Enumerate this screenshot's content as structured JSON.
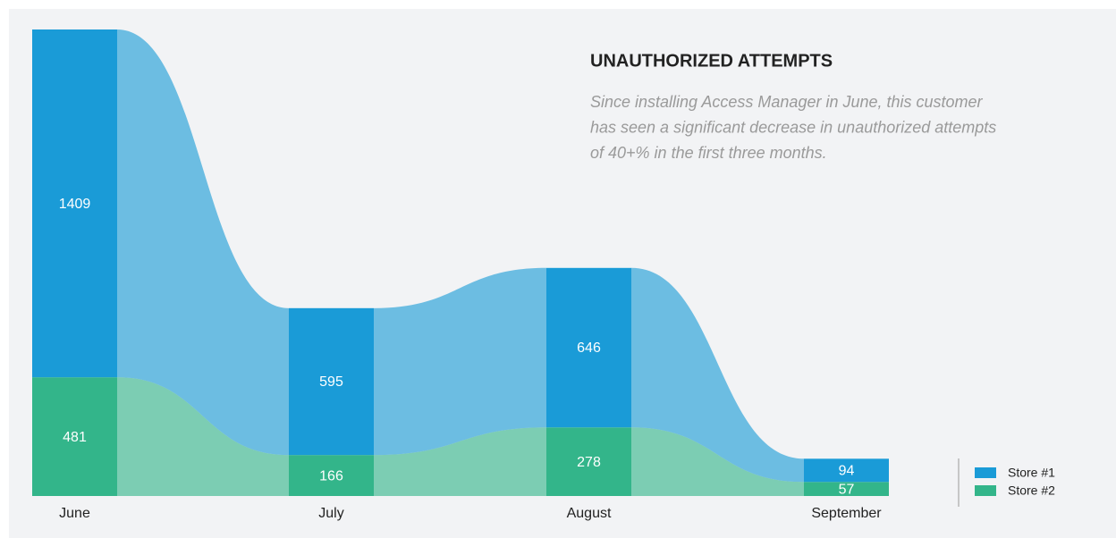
{
  "chart_data": {
    "type": "bar",
    "title": "UNAUTHORIZED ATTEMPTS",
    "subtitle": [
      "Since installing Access Manager in June, this customer",
      "has seen a significant decrease in unauthorized attempts",
      "of 40+% in the first three months."
    ],
    "categories": [
      "June",
      "July",
      "August",
      "September"
    ],
    "stacked": true,
    "series": [
      {
        "name": "Store #1",
        "color": "#1a9bd7",
        "values": [
          1409,
          595,
          646,
          94
        ]
      },
      {
        "name": "Store #2",
        "color": "#33b58a",
        "values": [
          481,
          166,
          278,
          57
        ]
      }
    ]
  }
}
